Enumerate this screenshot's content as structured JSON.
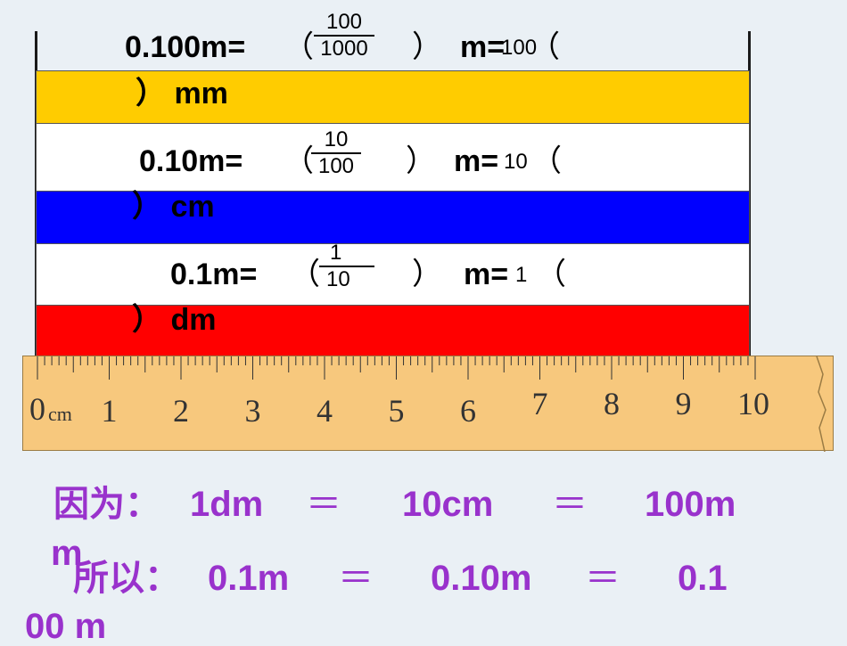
{
  "row1": {
    "value": "0.100m=",
    "open_paren": "（",
    "numerator": "100",
    "denominator": "1000",
    "close_paren": "）",
    "unit_eq": "m=",
    "answer": "100",
    "open_paren2": "（",
    "tail": "）  mm"
  },
  "row2": {
    "value": "0.10m=",
    "open_paren": "（",
    "numerator": "10",
    "denominator": "100",
    "close_paren": "）",
    "unit_eq": "m=",
    "answer": "10",
    "open_paren2": "（",
    "tail": "）  cm"
  },
  "row3": {
    "value": "0.1m=",
    "open_paren": "（",
    "numerator": "1",
    "denominator": "10",
    "close_paren": "）",
    "unit_eq": "m=",
    "answer": "1",
    "open_paren2": "（",
    "tail": "）  dm"
  },
  "colors": {
    "bar1": "#ffcc00",
    "bar2": "#0000ff",
    "bar3": "#ff0000",
    "ruler": "#f7c87d",
    "text_purple": "#9932cc"
  },
  "ruler": {
    "numbers": [
      "1",
      "2",
      "3",
      "4",
      "5",
      "6",
      "7",
      "8",
      "9",
      "10"
    ],
    "zero": "0",
    "unit": "cm"
  },
  "line1": {
    "prefix": "因为：",
    "a": "1dm",
    "eq1": "＝",
    "b": "10cm",
    "eq2": "＝",
    "c": "100m",
    "wrap": "m"
  },
  "line2": {
    "prefix": "所以：",
    "a": "0.1m",
    "eq1": "＝",
    "b": "0.10m",
    "eq2": "＝",
    "c": "0.1",
    "wrap": "00 m"
  }
}
